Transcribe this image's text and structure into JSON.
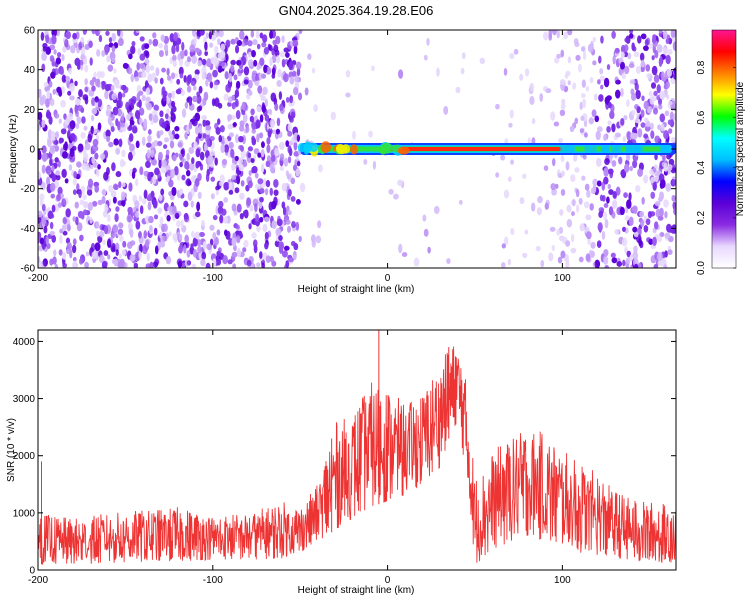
{
  "chart_data": [
    {
      "type": "heatmap",
      "title": "GN04.2025.364.19.28.E06",
      "xlabel": "Height of straight line (km)",
      "ylabel": "Frequency (Hz)",
      "xlim": [
        -200,
        165
      ],
      "ylim": [
        -60,
        60
      ],
      "xticks": [
        -200,
        -100,
        0,
        100
      ],
      "yticks": [
        -60,
        -40,
        -20,
        0,
        20,
        40,
        60
      ],
      "noise_regions_km": [
        [
          -200,
          -50
        ],
        [
          90,
          165
        ]
      ],
      "signal_band": {
        "x_start": -50,
        "x_end": 165,
        "frequency": 0,
        "peak_x_range": [
          0,
          100
        ]
      },
      "colorbar": {
        "label": "Normalized spectral amplitude",
        "ticks": [
          0.0,
          0.2,
          0.4,
          0.6,
          0.8
        ],
        "range": [
          0,
          0.95
        ],
        "colors": [
          "#ffffff",
          "#e8d8ff",
          "#8a2be2",
          "#5a00d8",
          "#0000ff",
          "#00bfff",
          "#00ffff",
          "#00ff00",
          "#ffff00",
          "#ff8000",
          "#ff0000",
          "#ff1493"
        ]
      }
    },
    {
      "type": "line",
      "xlabel": "Height of straight line (km)",
      "ylabel": "SNR (10 * v/v)",
      "xlim": [
        -200,
        165
      ],
      "ylim": [
        0,
        4200
      ],
      "xticks": [
        -200,
        -100,
        0,
        100
      ],
      "yticks": [
        0,
        1000,
        2000,
        3000,
        4000
      ],
      "line_color": "#ee3333",
      "series": [
        {
          "name": "SNR",
          "x": [
            -200,
            -180,
            -160,
            -140,
            -120,
            -100,
            -80,
            -60,
            -50,
            -40,
            -30,
            -20,
            -10,
            0,
            10,
            20,
            30,
            35,
            40,
            45,
            50,
            60,
            70,
            80,
            90,
            100,
            110,
            120,
            130,
            140,
            150,
            165
          ],
          "upper": [
            1000,
            900,
            1000,
            1050,
            1100,
            950,
            1000,
            1200,
            1100,
            1500,
            2600,
            2700,
            3300,
            3200,
            2900,
            3100,
            3600,
            3900,
            4000,
            3300,
            1600,
            2100,
            2300,
            2500,
            2400,
            2100,
            1900,
            1700,
            1400,
            1250,
            1200,
            1150
          ],
          "lower": [
            100,
            100,
            120,
            130,
            150,
            180,
            180,
            200,
            300,
            500,
            700,
            900,
            1100,
            1200,
            1300,
            1500,
            1800,
            2300,
            2600,
            1700,
            100,
            300,
            500,
            600,
            500,
            400,
            300,
            250,
            200,
            150,
            120,
            100
          ]
        }
      ]
    }
  ]
}
